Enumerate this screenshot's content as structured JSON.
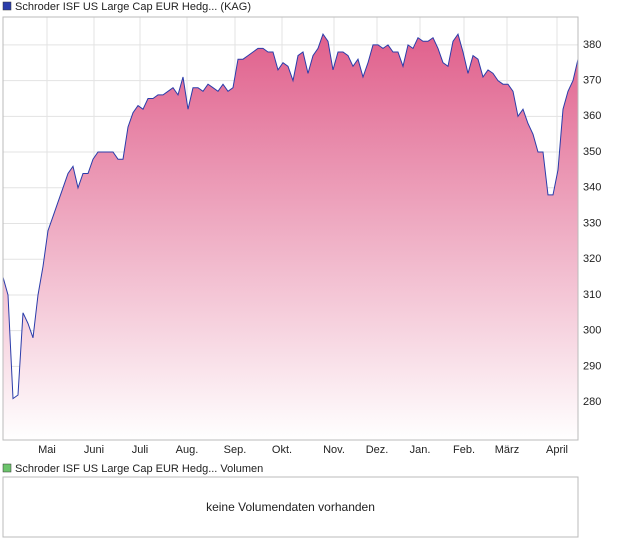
{
  "chart_data": [
    {
      "type": "area",
      "series": [
        {
          "name": "Schroder ISF US Large Cap EUR Hedg... (KAG)",
          "color": "#2a3caa",
          "fill": "#e0608c",
          "values": [
            315,
            310,
            281,
            282,
            305,
            302,
            298,
            310,
            318,
            328,
            332,
            336,
            340,
            344,
            346,
            340,
            344,
            344,
            348,
            350,
            350,
            350,
            350,
            348,
            348,
            357,
            361,
            363,
            362,
            365,
            365,
            366,
            366,
            367,
            368,
            366,
            371,
            362,
            368,
            368,
            367,
            369,
            368,
            367,
            369,
            367,
            368,
            376,
            376,
            377,
            378,
            379,
            379,
            378,
            378,
            373,
            375,
            374,
            370,
            377,
            378,
            372,
            377,
            379,
            383,
            381,
            373,
            378,
            378,
            377,
            374,
            376,
            371,
            375,
            380,
            380,
            379,
            380,
            378,
            378,
            374,
            380,
            379,
            382,
            381,
            381,
            382,
            379,
            375,
            374,
            381,
            383,
            378,
            372,
            377,
            376,
            371,
            373,
            372,
            370,
            369,
            369,
            367,
            360,
            362,
            358,
            355,
            350,
            350,
            338,
            338,
            345,
            362,
            367,
            370,
            376
          ]
        }
      ],
      "xlim": [
        0,
        115
      ],
      "xticks": [
        {
          "value": 8.8,
          "label": "Mai"
        },
        {
          "value": 18.2,
          "label": "Juni"
        },
        {
          "value": 27.4,
          "label": "Juli"
        },
        {
          "value": 36.8,
          "label": "Aug."
        },
        {
          "value": 46.4,
          "label": "Sep."
        },
        {
          "value": 55.8,
          "label": "Okt."
        },
        {
          "value": 66.2,
          "label": "Nov."
        },
        {
          "value": 74.8,
          "label": "Dez."
        },
        {
          "value": 83.4,
          "label": "Jan."
        },
        {
          "value": 92.2,
          "label": "Feb."
        },
        {
          "value": 100.8,
          "label": "März"
        },
        {
          "value": 110.8,
          "label": "April"
        }
      ],
      "ylim": [
        269.4,
        387.8
      ],
      "yticks": [
        280,
        290,
        300,
        310,
        320,
        330,
        340,
        350,
        360,
        370,
        380
      ],
      "grid": true
    },
    {
      "type": "bar",
      "series": [
        {
          "name": "Schroder ISF US Large Cap EUR Hedg... Volumen",
          "color": "#6cc46c",
          "values": []
        }
      ],
      "message": "keine Volumendaten vorhanden"
    }
  ]
}
